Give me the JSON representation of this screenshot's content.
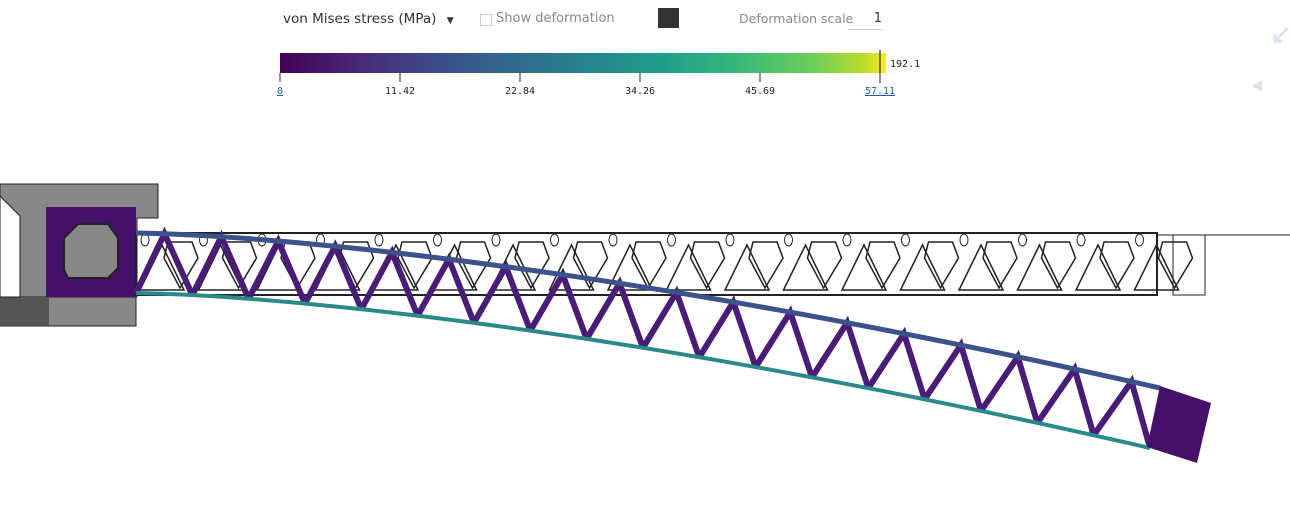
{
  "toolbar": {
    "result_type": "von Mises stress (MPa)",
    "show_deformation": "Show deformation",
    "deformation_scale_label": "Deformation scale",
    "deformation_scale_value": "1"
  },
  "legend": {
    "ticks": [
      "0",
      "11.42",
      "22.84",
      "34.26",
      "45.69",
      "57.11"
    ],
    "max": "192.1"
  }
}
